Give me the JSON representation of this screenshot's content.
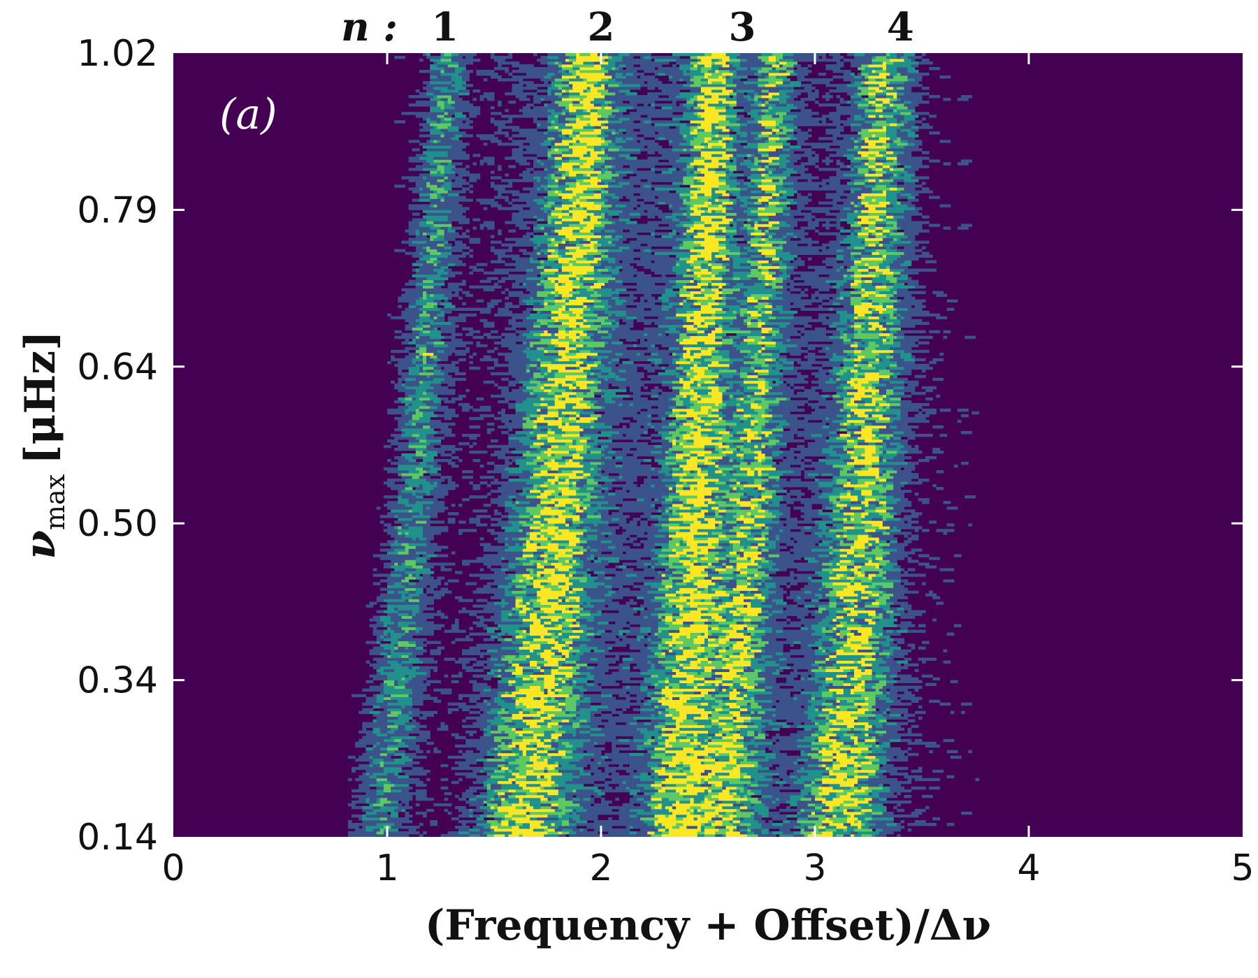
{
  "chart_data": {
    "type": "heatmap",
    "panel_label": "(a)",
    "xlabel": "(Frequency + Offset)/Δν",
    "ylabel_symbol": "ν",
    "ylabel_subscript": "max",
    "ylabel_unit": "[μHz]",
    "xlim": [
      0,
      5
    ],
    "x_ticks": [
      "0",
      "1",
      "2",
      "3",
      "4",
      "5"
    ],
    "y_ticks": [
      "0.14",
      "0.34",
      "0.50",
      "0.64",
      "0.79",
      "1.02"
    ],
    "y_tick_positions": [
      0,
      1,
      2,
      3,
      4,
      5
    ],
    "top_prefix": "n :",
    "top_orders": [
      {
        "label": "1",
        "x": 1.27
      },
      {
        "label": "2",
        "x": 2.0
      },
      {
        "label": "3",
        "x": 2.66
      },
      {
        "label": "4",
        "x": 3.4
      }
    ],
    "ridges": [
      {
        "name": "1",
        "x_bottom": 0.95,
        "x_top": 1.27,
        "width": 0.06,
        "strength": 0.55
      },
      {
        "name": "2",
        "x_bottom": 1.62,
        "x_top": 1.93,
        "width": 0.1,
        "strength": 1.0
      },
      {
        "name": "3a",
        "x_bottom": 2.35,
        "x_top": 2.52,
        "width": 0.07,
        "strength": 1.0
      },
      {
        "name": "3b",
        "x_bottom": 2.58,
        "x_top": 2.81,
        "width": 0.06,
        "strength": 0.7
      },
      {
        "name": "4",
        "x_bottom": 3.1,
        "x_top": 3.32,
        "width": 0.09,
        "strength": 0.85
      }
    ],
    "colormap": [
      "#440154",
      "#3b528b",
      "#21918c",
      "#5ec962",
      "#fde725"
    ],
    "background": "#440154"
  }
}
